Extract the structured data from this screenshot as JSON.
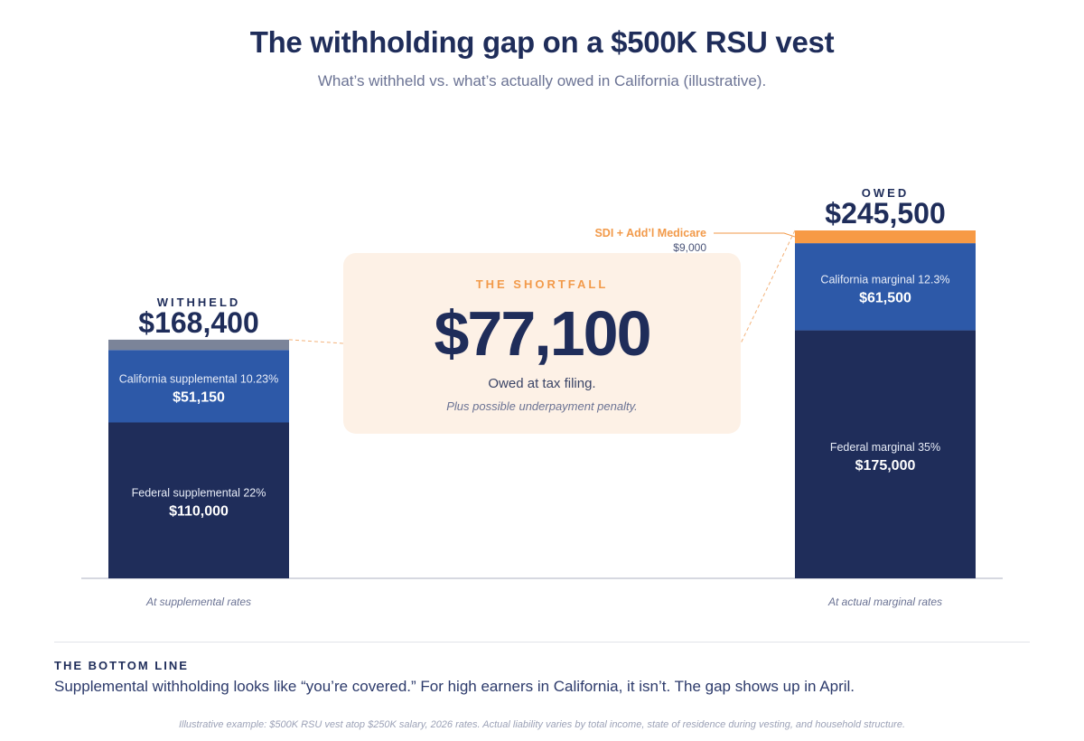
{
  "title": "The withholding gap on a $500K RSU vest",
  "subtitle": "What’s withheld vs. what’s actually owed in California (illustrative).",
  "chart_data": {
    "type": "bar",
    "stacked": true,
    "unit": "USD",
    "colors": {
      "federal": "#1f2d5a",
      "state": "#2d59a8",
      "other_withheld": "#7b8499",
      "sdi_medicare": "#f79a45",
      "accent": "#f29a4a"
    },
    "bars": [
      {
        "header": "WITHHELD",
        "total_label": "$168,400",
        "total": 168400,
        "caption": "At supplemental rates",
        "segments": [
          {
            "key": "federal",
            "name": "Federal supplemental 22%",
            "value": 110000,
            "value_label": "$110,000"
          },
          {
            "key": "state",
            "name": "California supplemental 10.23%",
            "value": 51150,
            "value_label": "$51,150"
          },
          {
            "key": "other_withheld",
            "name": "",
            "value": 7250,
            "value_label": ""
          }
        ]
      },
      {
        "header": "OWED",
        "total_label": "$245,500",
        "total": 245500,
        "caption": "At actual marginal rates",
        "segments": [
          {
            "key": "federal",
            "name": "Federal marginal 35%",
            "value": 175000,
            "value_label": "$175,000"
          },
          {
            "key": "state",
            "name": "California marginal 12.3%",
            "value": 61500,
            "value_label": "$61,500"
          },
          {
            "key": "sdi_medicare",
            "name": "SDI + Add’l Medicare",
            "value": 9000,
            "value_label": "$9,000",
            "external_label": true
          }
        ]
      }
    ]
  },
  "shortfall": {
    "kicker": "THE SHORTFALL",
    "amount": "$77,100",
    "note": "Owed at tax filing.",
    "subnote": "Plus possible underpayment penalty."
  },
  "bottom_line": {
    "heading": "THE BOTTOM LINE",
    "text": "Supplemental withholding looks like “you’re covered.” For high earners in California, it isn’t. The gap shows up in April."
  },
  "footnote": "Illustrative example: $500K RSU vest atop $250K salary, 2026 rates. Actual liability varies by total income, state of residence during vesting, and household structure."
}
